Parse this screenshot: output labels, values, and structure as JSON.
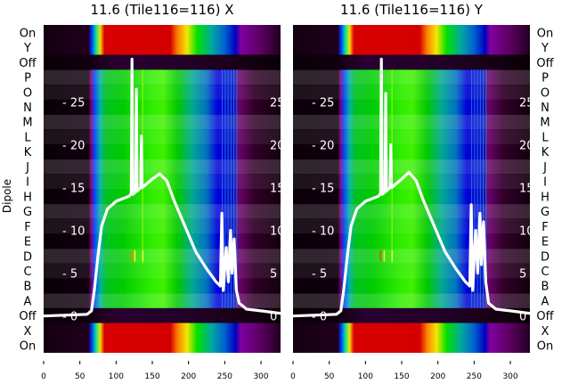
{
  "chart_data": {
    "type": "heatmap",
    "ylabel": "Dipole",
    "row_labels": [
      "On",
      "Y",
      "Off",
      "P",
      "O",
      "N",
      "M",
      "L",
      "K",
      "J",
      "I",
      "H",
      "G",
      "F",
      "E",
      "D",
      "C",
      "B",
      "A",
      "Off",
      "X",
      "On"
    ],
    "row_kinds": [
      "on",
      "on",
      "off",
      "dip",
      "dip",
      "dip",
      "dip",
      "dip",
      "dip",
      "dip",
      "dip",
      "dip",
      "dip",
      "dip",
      "dip",
      "dip",
      "dip",
      "dip",
      "dip",
      "off",
      "on",
      "on"
    ],
    "xlim": [
      0,
      327
    ],
    "xticks": [
      0,
      50,
      100,
      150,
      200,
      250,
      300
    ],
    "overlay_ylim": [
      -4.3,
      34
    ],
    "overlay_yticks": [
      0,
      5,
      10,
      15,
      20,
      25
    ],
    "profiles": {
      "dip": [
        [
          0,
          "#0a0008"
        ],
        [
          62,
          "#10000e"
        ],
        [
          66,
          "#7a007a"
        ],
        [
          70,
          "#0040ff"
        ],
        [
          78,
          "#00b0a0"
        ],
        [
          86,
          "#00c020"
        ],
        [
          110,
          "#00cc00"
        ],
        [
          150,
          "#30ee00"
        ],
        [
          165,
          "#40f000"
        ],
        [
          185,
          "#00c800"
        ],
        [
          205,
          "#00a890"
        ],
        [
          225,
          "#0070c0"
        ],
        [
          240,
          "#0000d8"
        ],
        [
          262,
          "#0010c0"
        ],
        [
          270,
          "#6a006a"
        ],
        [
          290,
          "#300028"
        ],
        [
          327,
          "#140010"
        ]
      ],
      "on": [
        [
          0,
          "#140010"
        ],
        [
          62,
          "#20001c"
        ],
        [
          66,
          "#0030ff"
        ],
        [
          72,
          "#00e0a0"
        ],
        [
          78,
          "#f0e000"
        ],
        [
          84,
          "#d80000"
        ],
        [
          175,
          "#d40000"
        ],
        [
          185,
          "#ff8000"
        ],
        [
          198,
          "#f0e800"
        ],
        [
          212,
          "#00e000"
        ],
        [
          232,
          "#00a8a0"
        ],
        [
          250,
          "#0060d0"
        ],
        [
          265,
          "#0000c0"
        ],
        [
          272,
          "#8000a0"
        ],
        [
          300,
          "#5a0060"
        ],
        [
          327,
          "#200020"
        ]
      ],
      "off": [
        [
          0,
          "#0a0006"
        ],
        [
          60,
          "#100010"
        ],
        [
          100,
          "#2a0030"
        ],
        [
          200,
          "#220028"
        ],
        [
          260,
          "#1a0018"
        ],
        [
          327,
          "#080004"
        ]
      ]
    },
    "panels": [
      {
        "title": "11.6 (Tile116=116) X",
        "line": [
          [
            0,
            0
          ],
          [
            60,
            0.2
          ],
          [
            66,
            0.6
          ],
          [
            70,
            3
          ],
          [
            75,
            7
          ],
          [
            80,
            10.5
          ],
          [
            88,
            12.5
          ],
          [
            100,
            13.4
          ],
          [
            118,
            14
          ],
          [
            121,
            14.3
          ],
          [
            122,
            30
          ],
          [
            123,
            14.2
          ],
          [
            127,
            14.5
          ],
          [
            128,
            26.5
          ],
          [
            129,
            14.6
          ],
          [
            134,
            15
          ],
          [
            135,
            21
          ],
          [
            136,
            15
          ],
          [
            150,
            16
          ],
          [
            160,
            16.6
          ],
          [
            170,
            15.8
          ],
          [
            180,
            13.5
          ],
          [
            195,
            10.5
          ],
          [
            210,
            7.5
          ],
          [
            225,
            5.5
          ],
          [
            238,
            4
          ],
          [
            244,
            3.5
          ],
          [
            246,
            12
          ],
          [
            248,
            3
          ],
          [
            252,
            8
          ],
          [
            255,
            4
          ],
          [
            258,
            10
          ],
          [
            260,
            5
          ],
          [
            263,
            9
          ],
          [
            266,
            3
          ],
          [
            270,
            1.5
          ],
          [
            280,
            0.8
          ],
          [
            300,
            0.6
          ],
          [
            327,
            0.3
          ]
        ],
        "highlights": [
          [
            121,
            "#ff8000"
          ],
          [
            125,
            "#ffff00"
          ],
          [
            136,
            "#ffff40"
          ]
        ]
      },
      {
        "title": "11.6 (Tile116=116) Y",
        "line": [
          [
            0,
            0
          ],
          [
            60,
            0.2
          ],
          [
            66,
            0.6
          ],
          [
            70,
            3
          ],
          [
            75,
            7
          ],
          [
            80,
            10.5
          ],
          [
            88,
            12.5
          ],
          [
            100,
            13.4
          ],
          [
            118,
            14
          ],
          [
            121,
            14.3
          ],
          [
            122,
            30
          ],
          [
            123,
            14.2
          ],
          [
            127,
            14.5
          ],
          [
            128,
            26
          ],
          [
            129,
            14.6
          ],
          [
            134,
            15
          ],
          [
            135,
            20
          ],
          [
            136,
            15
          ],
          [
            150,
            16
          ],
          [
            160,
            16.8
          ],
          [
            170,
            15.8
          ],
          [
            180,
            13.5
          ],
          [
            195,
            10.5
          ],
          [
            210,
            7.5
          ],
          [
            225,
            5.5
          ],
          [
            238,
            4
          ],
          [
            244,
            3.5
          ],
          [
            246,
            13
          ],
          [
            248,
            3
          ],
          [
            252,
            10
          ],
          [
            255,
            5
          ],
          [
            258,
            12
          ],
          [
            260,
            6
          ],
          [
            263,
            11
          ],
          [
            266,
            4
          ],
          [
            270,
            1.5
          ],
          [
            280,
            0.8
          ],
          [
            300,
            0.6
          ],
          [
            327,
            0.3
          ]
        ],
        "highlights": [
          [
            120,
            "#ff4000"
          ],
          [
            125,
            "#ffff00"
          ],
          [
            136,
            "#ffff40"
          ]
        ]
      }
    ]
  }
}
